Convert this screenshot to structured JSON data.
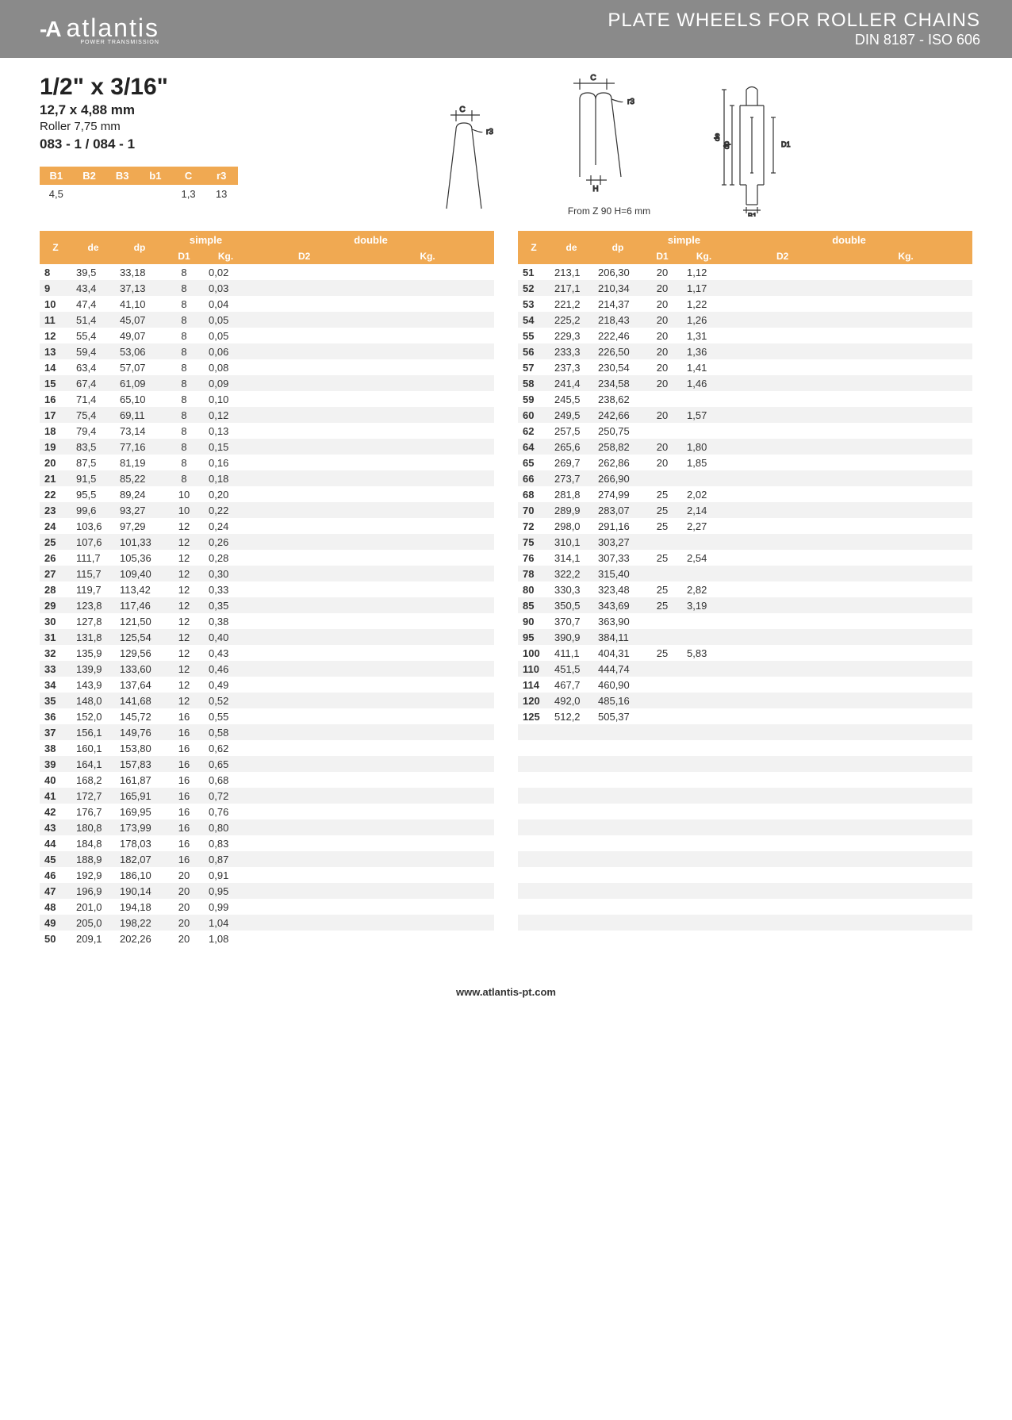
{
  "header": {
    "logo_text": "atlantis",
    "logo_sub": "POWER TRANSMISSION",
    "title": "PLATE WHEELS FOR ROLLER CHAINS",
    "subtitle": "DIN 8187 - ISO 606"
  },
  "spec": {
    "title": "1/2\" x 3/16\"",
    "mm": "12,7 x 4,88 mm",
    "roller": "Roller 7,75 mm",
    "code": "083 - 1 / 084 - 1"
  },
  "note": "From Z 90 H=6 mm",
  "small_table": {
    "columns": [
      "B1",
      "B2",
      "B3",
      "b1",
      "C",
      "r3"
    ],
    "row": [
      "4,5",
      "",
      "",
      "",
      "1,3",
      "13"
    ]
  },
  "table_headers": {
    "z": "Z",
    "de": "de",
    "dp": "dp",
    "simple": "simple",
    "double": "double",
    "d1": "D1",
    "kg": "Kg.",
    "d2": "D2",
    "kg2": "Kg."
  },
  "left_rows": [
    [
      "8",
      "39,5",
      "33,18",
      "8",
      "0,02"
    ],
    [
      "9",
      "43,4",
      "37,13",
      "8",
      "0,03"
    ],
    [
      "10",
      "47,4",
      "41,10",
      "8",
      "0,04"
    ],
    [
      "11",
      "51,4",
      "45,07",
      "8",
      "0,05"
    ],
    [
      "12",
      "55,4",
      "49,07",
      "8",
      "0,05"
    ],
    [
      "13",
      "59,4",
      "53,06",
      "8",
      "0,06"
    ],
    [
      "14",
      "63,4",
      "57,07",
      "8",
      "0,08"
    ],
    [
      "15",
      "67,4",
      "61,09",
      "8",
      "0,09"
    ],
    [
      "16",
      "71,4",
      "65,10",
      "8",
      "0,10"
    ],
    [
      "17",
      "75,4",
      "69,11",
      "8",
      "0,12"
    ],
    [
      "18",
      "79,4",
      "73,14",
      "8",
      "0,13"
    ],
    [
      "19",
      "83,5",
      "77,16",
      "8",
      "0,15"
    ],
    [
      "20",
      "87,5",
      "81,19",
      "8",
      "0,16"
    ],
    [
      "21",
      "91,5",
      "85,22",
      "8",
      "0,18"
    ],
    [
      "22",
      "95,5",
      "89,24",
      "10",
      "0,20"
    ],
    [
      "23",
      "99,6",
      "93,27",
      "10",
      "0,22"
    ],
    [
      "24",
      "103,6",
      "97,29",
      "12",
      "0,24"
    ],
    [
      "25",
      "107,6",
      "101,33",
      "12",
      "0,26"
    ],
    [
      "26",
      "111,7",
      "105,36",
      "12",
      "0,28"
    ],
    [
      "27",
      "115,7",
      "109,40",
      "12",
      "0,30"
    ],
    [
      "28",
      "119,7",
      "113,42",
      "12",
      "0,33"
    ],
    [
      "29",
      "123,8",
      "117,46",
      "12",
      "0,35"
    ],
    [
      "30",
      "127,8",
      "121,50",
      "12",
      "0,38"
    ],
    [
      "31",
      "131,8",
      "125,54",
      "12",
      "0,40"
    ],
    [
      "32",
      "135,9",
      "129,56",
      "12",
      "0,43"
    ],
    [
      "33",
      "139,9",
      "133,60",
      "12",
      "0,46"
    ],
    [
      "34",
      "143,9",
      "137,64",
      "12",
      "0,49"
    ],
    [
      "35",
      "148,0",
      "141,68",
      "12",
      "0,52"
    ],
    [
      "36",
      "152,0",
      "145,72",
      "16",
      "0,55"
    ],
    [
      "37",
      "156,1",
      "149,76",
      "16",
      "0,58"
    ],
    [
      "38",
      "160,1",
      "153,80",
      "16",
      "0,62"
    ],
    [
      "39",
      "164,1",
      "157,83",
      "16",
      "0,65"
    ],
    [
      "40",
      "168,2",
      "161,87",
      "16",
      "0,68"
    ],
    [
      "41",
      "172,7",
      "165,91",
      "16",
      "0,72"
    ],
    [
      "42",
      "176,7",
      "169,95",
      "16",
      "0,76"
    ],
    [
      "43",
      "180,8",
      "173,99",
      "16",
      "0,80"
    ],
    [
      "44",
      "184,8",
      "178,03",
      "16",
      "0,83"
    ],
    [
      "45",
      "188,9",
      "182,07",
      "16",
      "0,87"
    ],
    [
      "46",
      "192,9",
      "186,10",
      "20",
      "0,91"
    ],
    [
      "47",
      "196,9",
      "190,14",
      "20",
      "0,95"
    ],
    [
      "48",
      "201,0",
      "194,18",
      "20",
      "0,99"
    ],
    [
      "49",
      "205,0",
      "198,22",
      "20",
      "1,04"
    ],
    [
      "50",
      "209,1",
      "202,26",
      "20",
      "1,08"
    ]
  ],
  "right_rows": [
    [
      "51",
      "213,1",
      "206,30",
      "20",
      "1,12"
    ],
    [
      "52",
      "217,1",
      "210,34",
      "20",
      "1,17"
    ],
    [
      "53",
      "221,2",
      "214,37",
      "20",
      "1,22"
    ],
    [
      "54",
      "225,2",
      "218,43",
      "20",
      "1,26"
    ],
    [
      "55",
      "229,3",
      "222,46",
      "20",
      "1,31"
    ],
    [
      "56",
      "233,3",
      "226,50",
      "20",
      "1,36"
    ],
    [
      "57",
      "237,3",
      "230,54",
      "20",
      "1,41"
    ],
    [
      "58",
      "241,4",
      "234,58",
      "20",
      "1,46"
    ],
    [
      "59",
      "245,5",
      "238,62",
      "",
      ""
    ],
    [
      "60",
      "249,5",
      "242,66",
      "20",
      "1,57"
    ],
    [
      "62",
      "257,5",
      "250,75",
      "",
      ""
    ],
    [
      "64",
      "265,6",
      "258,82",
      "20",
      "1,80"
    ],
    [
      "65",
      "269,7",
      "262,86",
      "20",
      "1,85"
    ],
    [
      "66",
      "273,7",
      "266,90",
      "",
      ""
    ],
    [
      "68",
      "281,8",
      "274,99",
      "25",
      "2,02"
    ],
    [
      "70",
      "289,9",
      "283,07",
      "25",
      "2,14"
    ],
    [
      "72",
      "298,0",
      "291,16",
      "25",
      "2,27"
    ],
    [
      "75",
      "310,1",
      "303,27",
      "",
      ""
    ],
    [
      "76",
      "314,1",
      "307,33",
      "25",
      "2,54"
    ],
    [
      "78",
      "322,2",
      "315,40",
      "",
      ""
    ],
    [
      "80",
      "330,3",
      "323,48",
      "25",
      "2,82"
    ],
    [
      "85",
      "350,5",
      "343,69",
      "25",
      "3,19"
    ],
    [
      "90",
      "370,7",
      "363,90",
      "",
      ""
    ],
    [
      "95",
      "390,9",
      "384,11",
      "",
      ""
    ],
    [
      "100",
      "411,1",
      "404,31",
      "25",
      "5,83"
    ],
    [
      "110",
      "451,5",
      "444,74",
      "",
      ""
    ],
    [
      "114",
      "467,7",
      "460,90",
      "",
      ""
    ],
    [
      "120",
      "492,0",
      "485,16",
      "",
      ""
    ],
    [
      "125",
      "512,2",
      "505,37",
      "",
      ""
    ],
    [
      "",
      "",
      "",
      "",
      ""
    ],
    [
      "",
      "",
      "",
      "",
      ""
    ],
    [
      "",
      "",
      "",
      "",
      ""
    ],
    [
      "",
      "",
      "",
      "",
      ""
    ],
    [
      "",
      "",
      "",
      "",
      ""
    ],
    [
      "",
      "",
      "",
      "",
      ""
    ],
    [
      "",
      "",
      "",
      "",
      ""
    ],
    [
      "",
      "",
      "",
      "",
      ""
    ],
    [
      "",
      "",
      "",
      "",
      ""
    ],
    [
      "",
      "",
      "",
      "",
      ""
    ],
    [
      "",
      "",
      "",
      "",
      ""
    ],
    [
      "",
      "",
      "",
      "",
      ""
    ],
    [
      "",
      "",
      "",
      "",
      ""
    ],
    [
      "",
      "",
      "",
      "",
      ""
    ]
  ],
  "footer": "www.atlantis-pt.com",
  "colors": {
    "header_bg": "#8a8a8a",
    "accent": "#f0a952",
    "row_alt": "#f2f2f2",
    "text": "#333333"
  }
}
